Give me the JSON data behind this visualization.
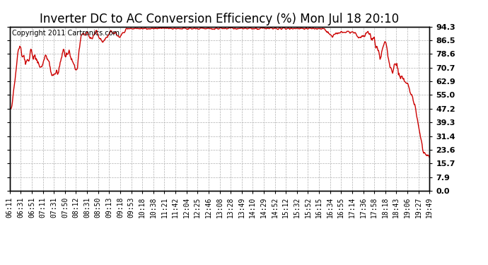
{
  "title": "Inverter DC to AC Conversion Efficiency (%) Mon Jul 18 20:10",
  "copyright": "Copyright 2011 Cartronics.com",
  "line_color": "#cc0000",
  "bg_color": "#ffffff",
  "plot_bg_color": "#ffffff",
  "grid_color": "#b0b0b0",
  "grid_style": "--",
  "ylim": [
    0.0,
    94.3
  ],
  "yticks": [
    0.0,
    7.9,
    15.7,
    23.6,
    31.4,
    39.3,
    47.2,
    55.0,
    62.9,
    70.7,
    78.6,
    86.5,
    94.3
  ],
  "xtick_labels": [
    "06:11",
    "06:31",
    "06:51",
    "07:11",
    "07:31",
    "07:50",
    "08:12",
    "08:31",
    "08:50",
    "09:13",
    "09:18",
    "09:53",
    "10:18",
    "10:38",
    "11:21",
    "11:42",
    "12:04",
    "12:25",
    "12:46",
    "13:08",
    "13:28",
    "13:49",
    "14:10",
    "14:29",
    "14:52",
    "15:12",
    "15:32",
    "15:52",
    "16:15",
    "16:34",
    "16:55",
    "17:14",
    "17:36",
    "17:58",
    "18:18",
    "18:43",
    "19:06",
    "19:27",
    "19:49"
  ],
  "title_fontsize": 12,
  "copyright_fontsize": 7,
  "tick_fontsize": 7,
  "line_width": 1.0
}
